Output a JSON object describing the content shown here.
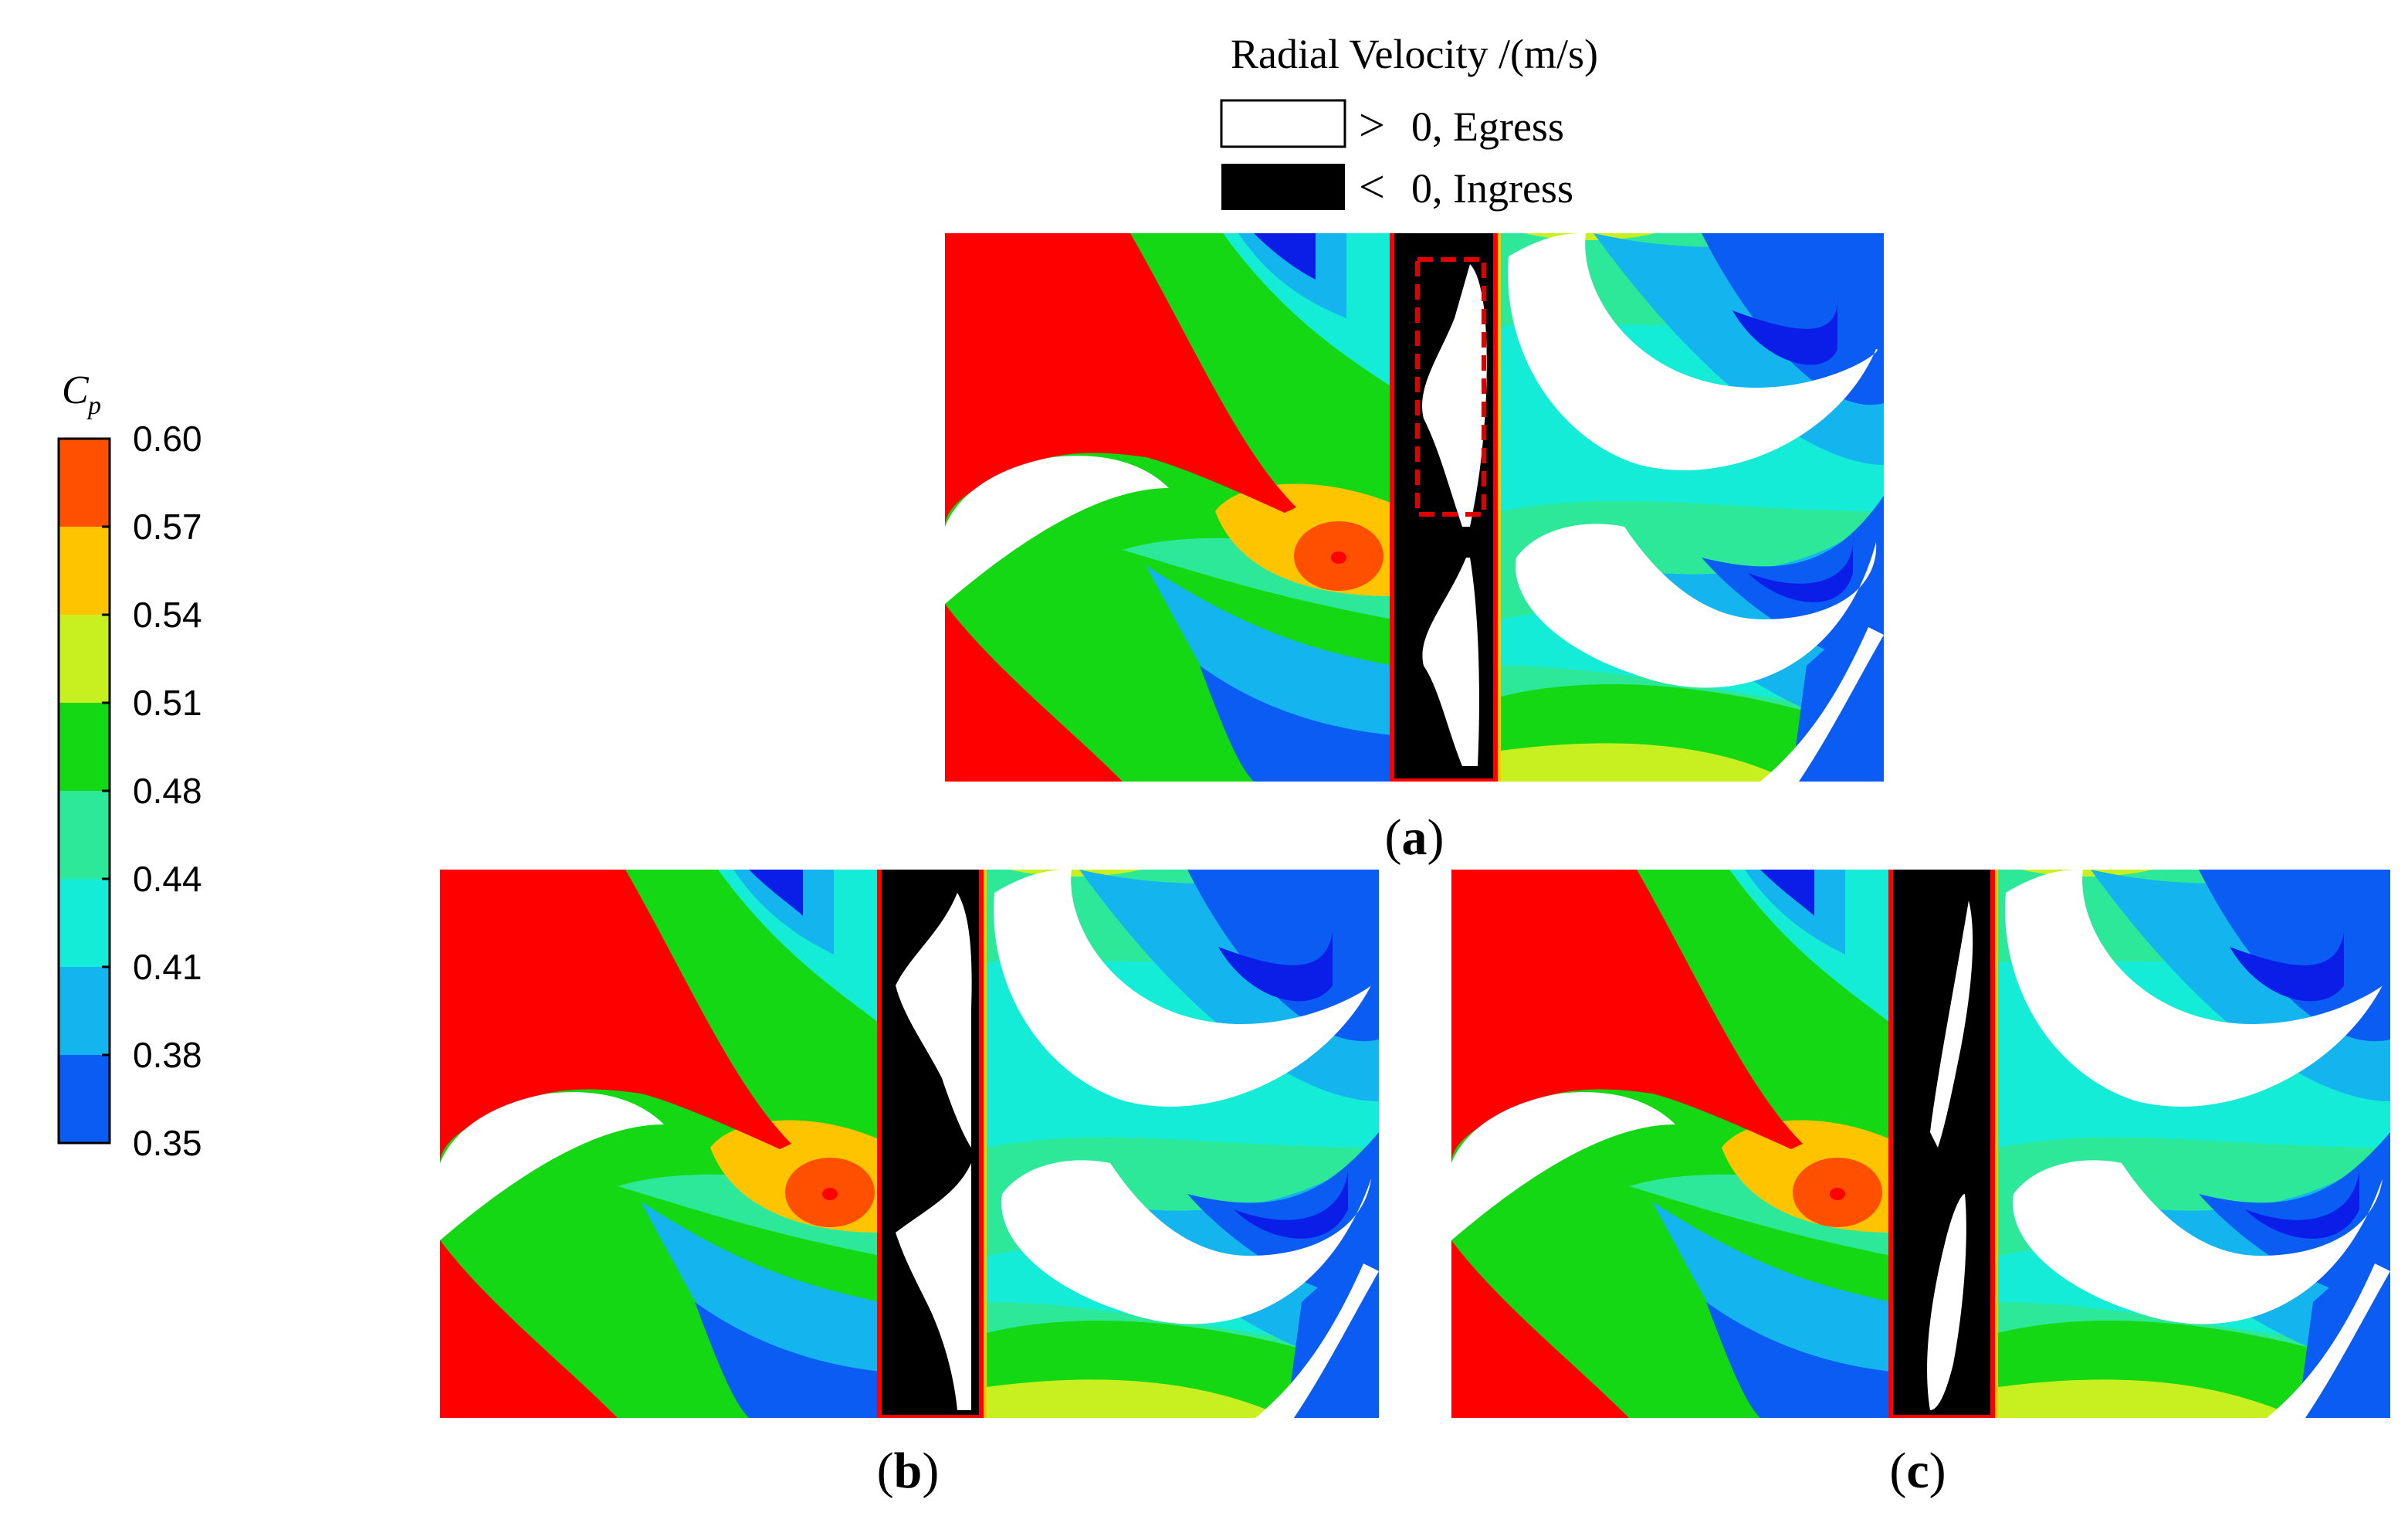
{
  "legend_top": {
    "title": "Radial Velocity /(m/s)",
    "items": [
      {
        "symbol": ">",
        "text": "0, Egress",
        "fill": "#ffffff"
      },
      {
        "symbol": "<",
        "text": "0, Ingress",
        "fill": "#000000"
      }
    ]
  },
  "colorbar": {
    "symbol": "C",
    "subscript": "p",
    "ticks": [
      "0.60",
      "0.57",
      "0.54",
      "0.51",
      "0.48",
      "0.44",
      "0.41",
      "0.38",
      "0.35"
    ],
    "colors": [
      "#ff4f00",
      "#ffc400",
      "#c8ef20",
      "#13d813",
      "#2ee89a",
      "#14ecd8",
      "#14b5ee",
      "#0a5cf2"
    ]
  },
  "panels": [
    {
      "label_open": "(",
      "label_letter": "a",
      "label_close": ")"
    },
    {
      "label_open": "(",
      "label_letter": "b",
      "label_close": ")"
    },
    {
      "label_open": "(",
      "label_letter": "c",
      "label_close": ")"
    }
  ],
  "colors": {
    "vane": "#ff0000",
    "hot": "#ff4f00",
    "warm": "#ffc400",
    "green": "#13d813",
    "lightgreen": "#2ee89a",
    "cyan": "#14ecd8",
    "lightblue": "#14b5ee",
    "blue": "#0a5cf2",
    "deepblue": "#0b1ee8",
    "ingress": "#000000",
    "egress": "#ffffff",
    "box": "#e00000"
  }
}
